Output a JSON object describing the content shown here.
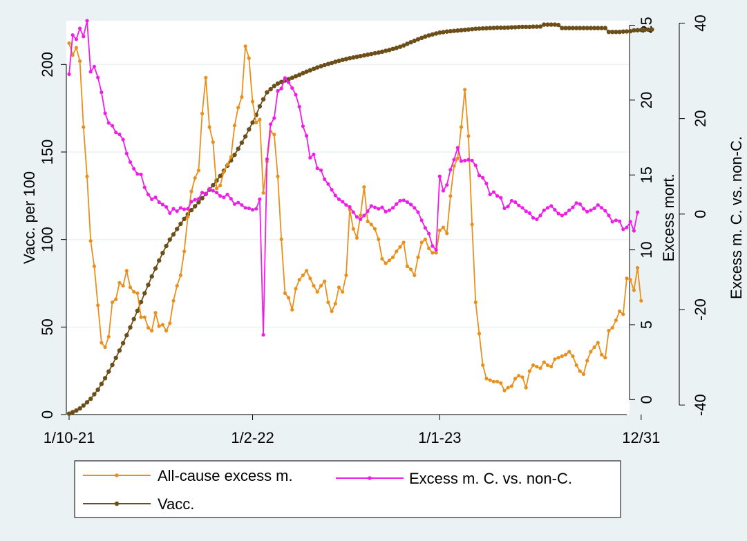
{
  "chart_data": {
    "type": "line",
    "title": "",
    "xlabel": "",
    "x_ticks": [
      "1/10-21",
      "1/2-22",
      "1/1-23",
      "12/31"
    ],
    "x_range_weeks": [
      0,
      155
    ],
    "axes": {
      "left": {
        "label": "Vacc. per 100",
        "ticks": [
          0,
          50,
          100,
          150,
          200
        ],
        "range": [
          0,
          225
        ]
      },
      "right1": {
        "label": "Excess mort.",
        "ticks": [
          0,
          5,
          10,
          15,
          20,
          25
        ],
        "range": [
          -1,
          25.3
        ]
      },
      "right2": {
        "label": "Excess m. C. vs. non-C.",
        "ticks": [
          -40,
          -20,
          0,
          20,
          40
        ],
        "range": [
          -42,
          40.5
        ]
      }
    },
    "grid": true,
    "legend_position": "bottom",
    "series": [
      {
        "name": "All-cause excess m.",
        "axis": "right1",
        "color": "#e8901e",
        "values": [
          23.8,
          23,
          23.5,
          22.6,
          18.2,
          14.9,
          10.6,
          8.9,
          6.3,
          3.8,
          3.5,
          4.2,
          6.5,
          6.7,
          7.8,
          7.6,
          8.6,
          7.5,
          7.2,
          7.1,
          5.5,
          5.5,
          4.8,
          4.6,
          5.8,
          4.9,
          5,
          4.6,
          5.1,
          6.6,
          7.6,
          8.3,
          9.9,
          12.2,
          13.9,
          14.8,
          15.3,
          19.1,
          21.5,
          18.2,
          17.2,
          14.1,
          14.3,
          15.2,
          15.7,
          16.2,
          18.3,
          19.5,
          20.2,
          23.6,
          22.8,
          19.9,
          18.5,
          18.7,
          13.8,
          15.9,
          17.9,
          17.7,
          14.9,
          10.7,
          7.1,
          6.8,
          6,
          7.4,
          8,
          8.3,
          8.6,
          8.1,
          7.6,
          7.2,
          7.6,
          7.9,
          6.5,
          5.9,
          6.4,
          7.5,
          7.2,
          8.3,
          12.7,
          11.4,
          10.8,
          12.3,
          14.2,
          11.9,
          11.7,
          11.4,
          10.7,
          9.4,
          9.1,
          9.3,
          9.5,
          9.9,
          10.2,
          10.5,
          8.9,
          8.7,
          8.3,
          9.5,
          10.5,
          10.7,
          10.1,
          9.8,
          9.8,
          11.3,
          11.5,
          11.1,
          13.6,
          15.6,
          16.1,
          18.2,
          20.7,
          17.6,
          11.7,
          6.5,
          4.4,
          2.3,
          1.4,
          1.3,
          1.2,
          1.2,
          1.1,
          0.6,
          0.8,
          0.9,
          1.4,
          1.6,
          1.5,
          0.8,
          1.9,
          2.3,
          2.2,
          2.1,
          2.5,
          2.3,
          2.2,
          2.7,
          2.8,
          2.9,
          3,
          3.2,
          2.9,
          2.3,
          1.9,
          1.7,
          2.6,
          3.2,
          3.5,
          3.8,
          3,
          2.8,
          4.6,
          4.8,
          5.3,
          5.9,
          5.7,
          8.1,
          8,
          7.3,
          8.8,
          6.6
        ]
      },
      {
        "name": "Excess m. C. vs. non-C.",
        "axis": "right2",
        "color": "#ee1ee6",
        "values": [
          29.3,
          37.5,
          36.6,
          38.9,
          37.2,
          40.5,
          29.8,
          30.9,
          28.6,
          25.5,
          21.1,
          19.1,
          18.5,
          17.1,
          16.7,
          15.6,
          12.7,
          10.9,
          9.5,
          8.4,
          8.3,
          5.6,
          4.1,
          3.1,
          3.5,
          2.5,
          2,
          1.5,
          0.2,
          1.1,
          0.6,
          1.3,
          1,
          1.1,
          2.6,
          3,
          3.2,
          4.5,
          4.2,
          5.3,
          4.9,
          4.5,
          3.8,
          3.5,
          4.1,
          3.2,
          2.1,
          2.4,
          1.9,
          1.3,
          1.2,
          0.9,
          1.1,
          3.1,
          -25.3,
          11.5,
          18.8,
          20.1,
          25.8,
          26.3,
          28.5,
          27.6,
          26.4,
          25,
          22.5,
          18.4,
          16.4,
          11.8,
          12.5,
          9.6,
          9.2,
          7.3,
          6.3,
          5.1,
          3.9,
          3.1,
          2.6,
          1.9,
          1.5,
          0.4,
          -0.6,
          -1.1,
          -0.3,
          0.6,
          1.7,
          1.4,
          1.1,
          1.4,
          0.5,
          0.8,
          1.3,
          2.1,
          2.8,
          2.9,
          2.5,
          2,
          1.3,
          0.4,
          -1.3,
          -2.9,
          -4.1,
          -6.7,
          -7.5,
          7.9,
          4.9,
          6.1,
          9.3,
          11.4,
          13.9,
          11.1,
          11.2,
          11.4,
          11.2,
          10.2,
          8.1,
          7.6,
          6.4,
          4.1,
          4.6,
          3.8,
          3.4,
          1.2,
          1.6,
          2.8,
          2.5,
          1.8,
          1.3,
          0.6,
          0.2,
          -0.8,
          -1.1,
          -0.3,
          0.8,
          1.3,
          1.7,
          0.9,
          0.1,
          -0.3,
          0.1,
          0.8,
          1.4,
          2.3,
          2.1,
          1.1,
          0.5,
          0.8,
          1.2,
          1.9,
          1.3,
          0.7,
          -0.3,
          -1.6,
          -1.3,
          -1.5,
          -3.2,
          -2.8,
          -1.6,
          -3.5,
          0.4
        ]
      },
      {
        "name": "Vacc.",
        "axis": "left",
        "color": "#6b4e18",
        "values": [
          0.5,
          1.4,
          2.3,
          3.5,
          5.2,
          7,
          9,
          11.6,
          14.2,
          17.5,
          20.8,
          24.6,
          28.4,
          32.4,
          36.6,
          40.8,
          45.3,
          49.8,
          54.5,
          59.3,
          64.3,
          69.3,
          74.1,
          78.9,
          83.5,
          88,
          92.3,
          96.3,
          100,
          102.9,
          106,
          109,
          111.8,
          114.4,
          116.8,
          119,
          121.3,
          123.6,
          126,
          128.5,
          131,
          133.7,
          136.3,
          139.3,
          142.2,
          145.2,
          148.4,
          151.8,
          155.3,
          158.9,
          162.9,
          166.8,
          171.2,
          176.1,
          180.1,
          184.1,
          185.9,
          187.7,
          189.1,
          190,
          190.8,
          191.6,
          192.4,
          193.3,
          194.1,
          195,
          195.9,
          196.7,
          197.5,
          198.3,
          199,
          199.7,
          200.3,
          200.9,
          201.5,
          202.1,
          202.6,
          203.1,
          203.6,
          204,
          204.4,
          204.8,
          205.2,
          205.6,
          206,
          206.4,
          206.8,
          207.3,
          207.8,
          208.3,
          208.9,
          209.5,
          210.1,
          210.9,
          211.8,
          212.7,
          213.6,
          214.4,
          215.2,
          216,
          216.6,
          217.2,
          217.7,
          218.2,
          218.5,
          218.8,
          219,
          219.2,
          219.4,
          219.6,
          219.8,
          220,
          220.2,
          220.4,
          220.5,
          220.6,
          220.7,
          220.8,
          220.9,
          221,
          221,
          221,
          221.1,
          221.2,
          221.3,
          221.4,
          221.5,
          221.5,
          221.5,
          221.6,
          221.6,
          221.7,
          222.8,
          222.8,
          222.8,
          222.8,
          222.6,
          220.8,
          220.8,
          220.8,
          220.8,
          220.8,
          220.8,
          220.8,
          220.8,
          220.8,
          220.8,
          220.8,
          220.8,
          220.8,
          218.6,
          218.6,
          218.6,
          218.6,
          218.8,
          218.9,
          219,
          219.5,
          219.6,
          219.7,
          219.8,
          219.9,
          220
        ]
      }
    ]
  }
}
